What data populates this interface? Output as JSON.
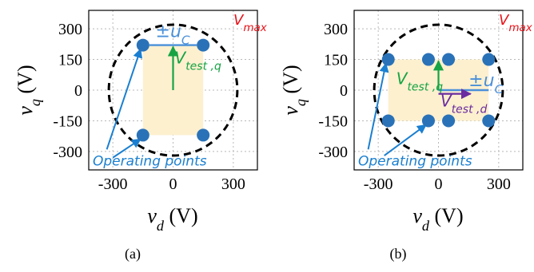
{
  "chart_data": [
    {
      "id": "a",
      "type": "scatter",
      "caption": "(a)",
      "xlabel_var": "v",
      "xlabel_sub": "d",
      "xlabel_unit": "(V)",
      "ylabel_var": "v",
      "ylabel_sub": "q",
      "ylabel_unit": "(V)",
      "xlim": [
        -420,
        420
      ],
      "ylim": [
        -390,
        390
      ],
      "xticks": [
        -300,
        0,
        300
      ],
      "yticks": [
        300,
        150,
        0,
        -150,
        -300
      ],
      "grid": true,
      "vmax_radius": 320,
      "rect": {
        "x": [
          -150,
          150
        ],
        "y": [
          -220,
          220
        ]
      },
      "points": [
        [
          -150,
          220
        ],
        [
          150,
          220
        ],
        [
          -150,
          -220
        ],
        [
          150,
          -220
        ]
      ],
      "vmax_label": {
        "main": "V",
        "sub": "max"
      },
      "uc_label": {
        "pm": "±",
        "main": "u",
        "sub": "C"
      },
      "uc_arrow": {
        "from": [
          -150,
          220
        ],
        "to": [
          150,
          220
        ]
      },
      "vtest_q": {
        "main": "V",
        "sub": "test ,q",
        "x": 0,
        "y_from": 0,
        "y_to": 220
      },
      "operating_label": "Operating points",
      "op_arrows": [
        {
          "from": [
            -330,
            -290
          ],
          "to": [
            -150,
            220
          ]
        },
        {
          "from": [
            -300,
            -330
          ],
          "to": [
            -150,
            -220
          ]
        }
      ]
    },
    {
      "id": "b",
      "type": "scatter",
      "caption": "(b)",
      "xlabel_var": "v",
      "xlabel_sub": "d",
      "xlabel_unit": "(V)",
      "ylabel_var": "v",
      "ylabel_sub": "q",
      "ylabel_unit": "(V)",
      "xlim": [
        -420,
        420
      ],
      "ylim": [
        -390,
        390
      ],
      "xticks": [
        -300,
        0,
        300
      ],
      "yticks": [
        300,
        150,
        0,
        -150,
        -300
      ],
      "grid": true,
      "vmax_radius": 320,
      "rect": {
        "x": [
          -250,
          250
        ],
        "y": [
          -150,
          150
        ]
      },
      "points": [
        [
          -250,
          150
        ],
        [
          -50,
          150
        ],
        [
          50,
          150
        ],
        [
          250,
          150
        ],
        [
          -250,
          -150
        ],
        [
          -50,
          -150
        ],
        [
          50,
          -150
        ],
        [
          250,
          -150
        ]
      ],
      "vmax_label": {
        "main": "V",
        "sub": "max"
      },
      "uc_label": {
        "pm": "±",
        "main": "u",
        "sub": "C"
      },
      "uc_arrow": {
        "from": [
          0,
          0
        ],
        "to": [
          250,
          0
        ]
      },
      "vtest_q": {
        "main": "V",
        "sub": "test ,q",
        "x": 0,
        "y_from": 0,
        "y_to": 150
      },
      "vtest_d": {
        "main": "V",
        "sub": "test ,d",
        "y": -18,
        "x_from": 0,
        "x_to": 160
      },
      "operating_label": "Operating points",
      "op_arrows": [
        {
          "from": [
            -350,
            -290
          ],
          "to": [
            -250,
            150
          ]
        },
        {
          "from": [
            -270,
            -320
          ],
          "to": [
            -50,
            -150
          ]
        }
      ]
    }
  ],
  "colors": {
    "point": "#2a72b8",
    "rect": "#fdf0cf",
    "circle": "#000000",
    "vmax": "#e8141b",
    "uc": "#4a90d9",
    "vtest_q": "#17a344",
    "vtest_d": "#6a2ca0",
    "operating": "#1a7fd0",
    "grid": "#b8b8b8",
    "axis": "#000000"
  }
}
